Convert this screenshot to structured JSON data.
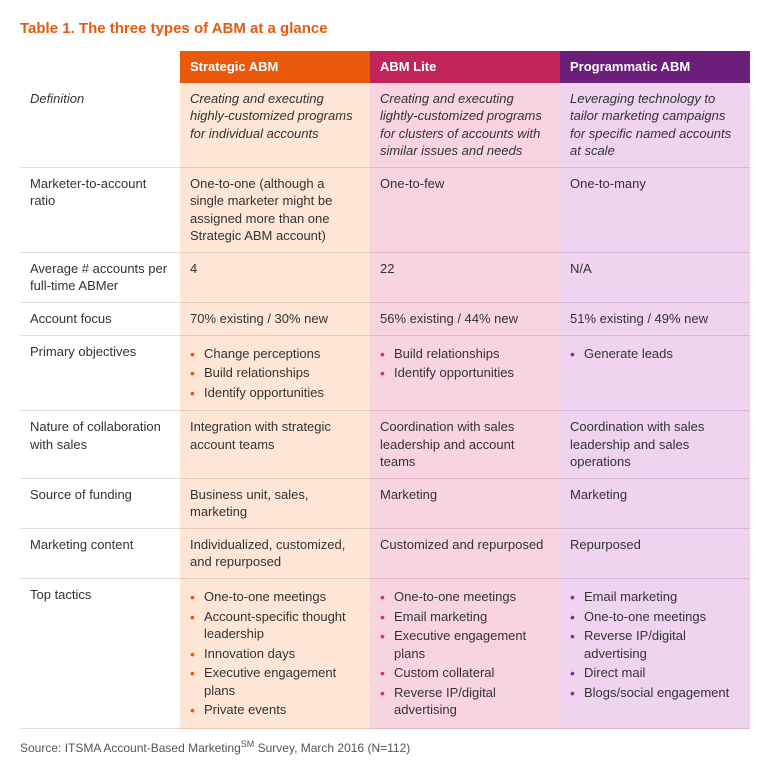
{
  "title": "Table 1. The three types of ABM at a glance",
  "headers": {
    "a": {
      "label": "Strategic ABM",
      "bg": "#e8590c"
    },
    "b": {
      "label": "ABM Lite",
      "bg": "#c2255c"
    },
    "c": {
      "label": "Programmatic ABM",
      "bg": "#6b1e7a"
    }
  },
  "col_bg": {
    "a": "#fde6d6",
    "b": "#f8d4de",
    "c": "#eed4ee"
  },
  "rows": [
    {
      "label": "Definition",
      "italic": true,
      "a": "Creating and executing highly-customized programs for individual accounts",
      "b": "Creating and executing lightly-customized programs for clusters of accounts with similar issues and needs",
      "c": "Leveraging technology to tailor marketing campaigns for specific named accounts at scale"
    },
    {
      "label": "Marketer-to-account ratio",
      "a": "One-to-one (although a single marketer might be assigned more than one Strategic ABM account)",
      "b": "One-to-few",
      "c": "One-to-many"
    },
    {
      "label": "Average # accounts per full-time ABMer",
      "a": "4",
      "b": "22",
      "c": "N/A"
    },
    {
      "label": "Account focus",
      "a": "70% existing / 30% new",
      "b": "56% existing / 44% new",
      "c": "51% existing / 49% new"
    },
    {
      "label": "Primary objectives",
      "a_list": [
        "Change perceptions",
        "Build relationships",
        "Identify opportunities"
      ],
      "b_list": [
        "Build relationships",
        "Identify opportunities"
      ],
      "c_list": [
        "Generate leads"
      ]
    },
    {
      "label": "Nature of collaboration with sales",
      "a": "Integration with strategic account teams",
      "b": "Coordination with sales leadership and account teams",
      "c": "Coordination with sales leadership and sales operations"
    },
    {
      "label": "Source of funding",
      "a": "Business unit, sales, marketing",
      "b": "Marketing",
      "c": "Marketing"
    },
    {
      "label": "Marketing content",
      "a": "Individualized, customized, and repurposed",
      "b": "Customized and repurposed",
      "c": "Repurposed"
    },
    {
      "label": "Top tactics",
      "a_list": [
        "One-to-one meetings",
        "Account-specific thought leadership",
        "Innovation days",
        "Executive engagement plans",
        "Private events"
      ],
      "b_list": [
        "One-to-one meetings",
        "Email marketing",
        "Executive engagement plans",
        "Custom collateral",
        "Reverse IP/digital advertising"
      ],
      "c_list": [
        "Email marketing",
        "One-to-one meetings",
        "Reverse IP/digital advertising",
        "Direct mail",
        "Blogs/social engagement"
      ]
    }
  ],
  "source_prefix": "Source: ITSMA Account-Based Marketing",
  "source_sm": "SM",
  "source_suffix": " Survey, March 2016 (N=112)"
}
